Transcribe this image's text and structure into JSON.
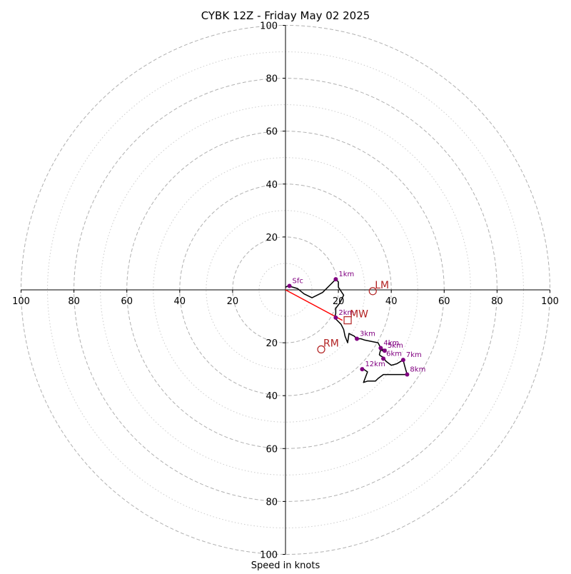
{
  "chart_data": {
    "type": "hodograph",
    "title": "CYBK 12Z - Friday May 02 2025",
    "xlabel": "Speed in knots",
    "range": [
      -100,
      100
    ],
    "rings_major": [
      20,
      40,
      60,
      80,
      100
    ],
    "rings_minor": [
      10,
      30,
      50,
      70,
      90
    ],
    "x_tick_labels": [
      "100",
      "80",
      "60",
      "40",
      "20",
      "20",
      "40",
      "60",
      "80",
      "100"
    ],
    "y_tick_labels": [
      "100",
      "80",
      "60",
      "40",
      "20",
      "20",
      "40",
      "60",
      "80",
      "100"
    ],
    "hodograph_trace": [
      [
        0,
        1
      ],
      [
        1,
        1.5
      ],
      [
        4.5,
        0.5
      ],
      [
        7,
        -1.5
      ],
      [
        10,
        -3
      ],
      [
        14,
        -1
      ],
      [
        17,
        2
      ],
      [
        19,
        4
      ],
      [
        20,
        3
      ],
      [
        20,
        1
      ],
      [
        22,
        -2
      ],
      [
        20.5,
        -5
      ],
      [
        19,
        -7
      ],
      [
        19,
        -9
      ],
      [
        18.5,
        -10.5
      ],
      [
        21,
        -13
      ],
      [
        22,
        -15
      ],
      [
        22.5,
        -17.5
      ],
      [
        23.5,
        -20
      ],
      [
        24,
        -16.5
      ],
      [
        26,
        -17.5
      ],
      [
        27,
        -18.5
      ],
      [
        28.5,
        -18.5
      ],
      [
        30,
        -19
      ],
      [
        35,
        -20
      ],
      [
        36,
        -22
      ],
      [
        36.5,
        -23
      ],
      [
        37.5,
        -23
      ],
      [
        38,
        -22.5
      ],
      [
        36,
        -22.5
      ],
      [
        35.5,
        -24.5
      ],
      [
        36,
        -25
      ],
      [
        37,
        -25.5
      ],
      [
        38,
        -27
      ],
      [
        40,
        -28.5
      ],
      [
        42,
        -28
      ],
      [
        44.5,
        -26.5
      ],
      [
        45,
        -28.5
      ],
      [
        46,
        -32
      ],
      [
        43,
        -32
      ],
      [
        37,
        -32
      ],
      [
        35,
        -33.5
      ],
      [
        34,
        -34.5
      ],
      [
        31,
        -34.5
      ],
      [
        29.5,
        -35
      ],
      [
        31,
        -31
      ],
      [
        29.5,
        -30
      ],
      [
        29,
        -30
      ]
    ],
    "height_points": [
      {
        "label": "Sfc",
        "x": 1.5,
        "y": 1.5
      },
      {
        "label": "1km",
        "x": 19,
        "y": 4
      },
      {
        "label": "2km",
        "x": 19,
        "y": -10.5
      },
      {
        "label": "3km",
        "x": 27,
        "y": -18.5
      },
      {
        "label": "4km",
        "x": 36,
        "y": -22
      },
      {
        "label": "5km",
        "x": 37.5,
        "y": -23
      },
      {
        "label": "6km",
        "x": 37,
        "y": -26
      },
      {
        "label": "7km",
        "x": 44.5,
        "y": -26.5
      },
      {
        "label": "8km",
        "x": 46,
        "y": -32
      },
      {
        "label": "12km",
        "x": 29,
        "y": -30
      }
    ],
    "storm_motions": [
      {
        "label": "LM",
        "x": 33,
        "y": -0.5,
        "marker": "circle"
      },
      {
        "label": "RM",
        "x": 13.5,
        "y": -22.5,
        "marker": "circle"
      },
      {
        "label": "MW",
        "x": 23.5,
        "y": -11.5,
        "marker": "square"
      }
    ],
    "vector": {
      "from": [
        0,
        0
      ],
      "to": [
        21.5,
        -11.5
      ]
    },
    "colors": {
      "trace": "#000000",
      "points": "#800080",
      "motion": "#b22222",
      "vector": "#ff0000",
      "ring_major": "#b0b0b0",
      "ring_minor": "#cccccc"
    }
  }
}
